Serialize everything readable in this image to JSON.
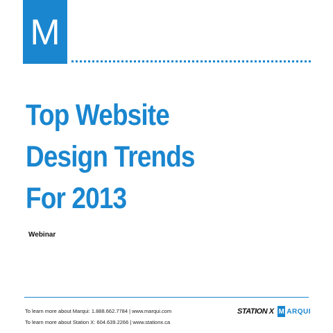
{
  "logo": {
    "letter": "M",
    "color": "#1a86cf"
  },
  "title_lines": [
    "Top Website",
    "Design Trends",
    "For 2013"
  ],
  "subtitle": "Webinar",
  "footer": {
    "contact_marqui": "To learn more about Marqui: 1.888.662.7784 | www.marqui.com",
    "contact_stationx": "To learn more about Station X: 604.639.2266 | www.stationx.ca",
    "stationx_logo_text": "STATION X",
    "marqui_logo_initial": "M",
    "marqui_logo_rest": "ARQUI"
  }
}
